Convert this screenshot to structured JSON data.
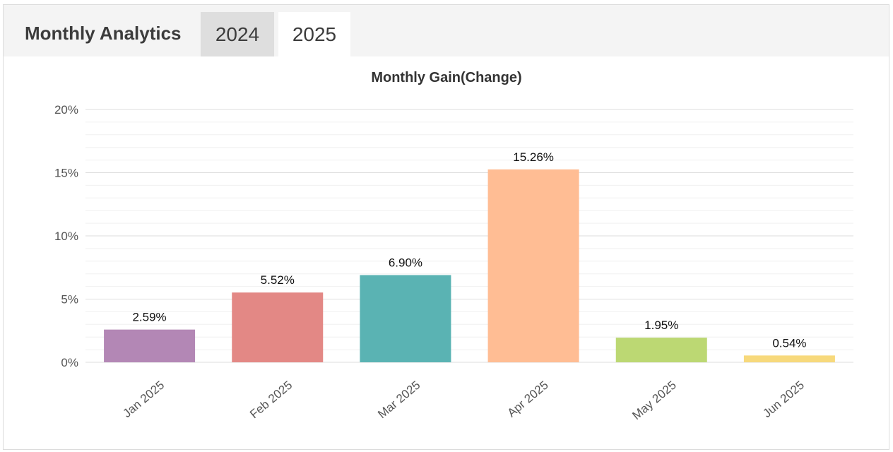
{
  "header": {
    "title": "Monthly Analytics",
    "tabs": [
      {
        "label": "2024",
        "active": false
      },
      {
        "label": "2025",
        "active": true
      }
    ]
  },
  "chart_data": {
    "type": "bar",
    "title": "Monthly Gain(Change)",
    "categories": [
      "Jan 2025",
      "Feb 2025",
      "Mar 2025",
      "Apr 2025",
      "May 2025",
      "Jun 2025"
    ],
    "values": [
      2.59,
      5.52,
      6.9,
      15.26,
      1.95,
      0.54
    ],
    "data_labels": [
      "2.59%",
      "5.52%",
      "6.90%",
      "15.26%",
      "1.95%",
      "0.54%"
    ],
    "bar_colors": [
      "#b387b5",
      "#e38885",
      "#5ab3b3",
      "#ffbd94",
      "#bcd873",
      "#f7d97c"
    ],
    "ylim": [
      0,
      20
    ],
    "yticks": [
      0,
      5,
      10,
      15,
      20
    ],
    "ytick_labels": [
      "0%",
      "5%",
      "10%",
      "15%",
      "20%"
    ],
    "grid": true,
    "legend": "none"
  }
}
